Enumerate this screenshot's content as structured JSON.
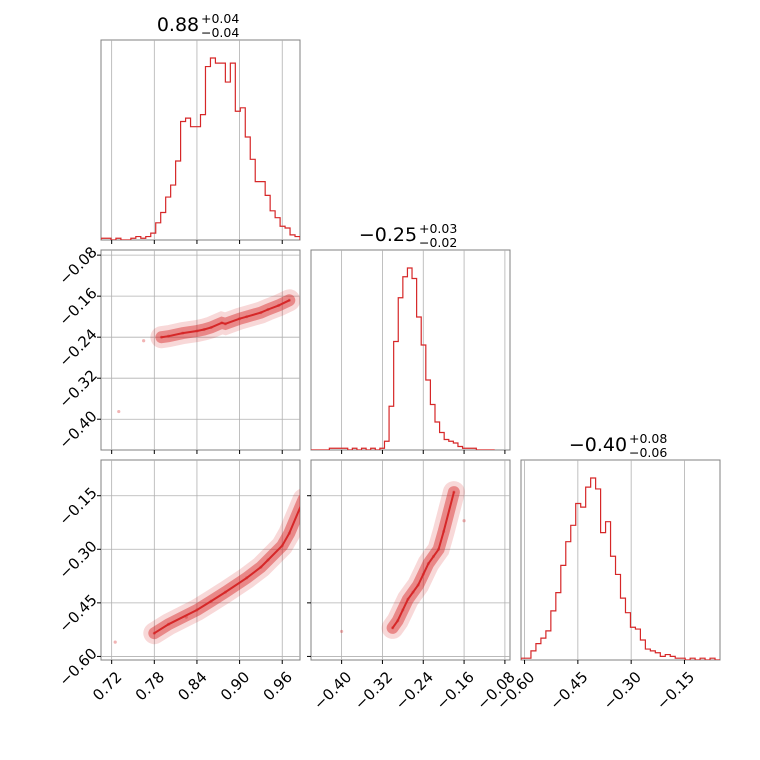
{
  "colors": {
    "series": "#d62728",
    "grid": "#b0b0b0",
    "frame": "#808080"
  },
  "chart_data": {
    "type": "corner",
    "parameters": [
      {
        "name": "",
        "median": "0.88",
        "plus": "+0.04",
        "minus": "−0.04",
        "range": [
          0.705,
          0.985
        ],
        "ticks": [
          0.72,
          0.78,
          0.84,
          0.9,
          0.96
        ],
        "tick_labels": [
          "0.72",
          "0.78",
          "0.84",
          "0.90",
          "0.96"
        ],
        "hist": {
          "bins": [
            0.705,
            0.712,
            0.719,
            0.726,
            0.733,
            0.74,
            0.747,
            0.754,
            0.761,
            0.768,
            0.775,
            0.782,
            0.789,
            0.796,
            0.803,
            0.81,
            0.817,
            0.824,
            0.831,
            0.838,
            0.845,
            0.852,
            0.859,
            0.866,
            0.873,
            0.88,
            0.887,
            0.894,
            0.901,
            0.908,
            0.915,
            0.922,
            0.929,
            0.936,
            0.943,
            0.95,
            0.957,
            0.964,
            0.971,
            0.978,
            0.985
          ],
          "counts": [
            1,
            1,
            0,
            1,
            0,
            0,
            1,
            2,
            1,
            2,
            4,
            10,
            16,
            25,
            32,
            46,
            69,
            71,
            66,
            66,
            73,
            101,
            106,
            103,
            103,
            92,
            103,
            75,
            77,
            60,
            47,
            34,
            34,
            26,
            17,
            13,
            8,
            7,
            3,
            2
          ]
        }
      },
      {
        "name": "",
        "median": "−0.25",
        "plus": "+0.03",
        "minus": "−0.02",
        "range": [
          -0.46,
          -0.07
        ],
        "ticks": [
          -0.4,
          -0.32,
          -0.24,
          -0.16,
          -0.08
        ],
        "tick_labels": [
          "−0.40",
          "−0.32",
          "−0.24",
          "−0.16",
          "−0.08"
        ],
        "hist": {
          "bins": [
            -0.46,
            -0.451,
            -0.442,
            -0.433,
            -0.424,
            -0.415,
            -0.406,
            -0.397,
            -0.388,
            -0.379,
            -0.37,
            -0.361,
            -0.352,
            -0.343,
            -0.334,
            -0.325,
            -0.316,
            -0.307,
            -0.298,
            -0.289,
            -0.28,
            -0.271,
            -0.262,
            -0.253,
            -0.244,
            -0.235,
            -0.226,
            -0.217,
            -0.208,
            -0.199,
            -0.19,
            -0.181,
            -0.172,
            -0.163,
            -0.154,
            -0.145,
            -0.136,
            -0.127,
            -0.118,
            -0.109,
            -0.1
          ],
          "counts": [
            0,
            0,
            0,
            0,
            1,
            1,
            1,
            1,
            0,
            1,
            0,
            1,
            0,
            1,
            0,
            1,
            5,
            25,
            62,
            87,
            99,
            104,
            98,
            76,
            60,
            40,
            26,
            16,
            10,
            6,
            5,
            4,
            2,
            1,
            1,
            1,
            0,
            0,
            0,
            0
          ]
        }
      },
      {
        "name": "",
        "median": "−0.40",
        "plus": "+0.08",
        "minus": "−0.06",
        "range": [
          -0.61,
          -0.05
        ],
        "ticks": [
          -0.6,
          -0.45,
          -0.3,
          -0.15
        ],
        "tick_labels": [
          "−0.60",
          "−0.45",
          "−0.30",
          "−0.15"
        ],
        "hist": {
          "bins": [
            -0.61,
            -0.596,
            -0.582,
            -0.568,
            -0.554,
            -0.54,
            -0.526,
            -0.512,
            -0.498,
            -0.484,
            -0.47,
            -0.456,
            -0.442,
            -0.428,
            -0.414,
            -0.4,
            -0.386,
            -0.372,
            -0.358,
            -0.344,
            -0.33,
            -0.316,
            -0.302,
            -0.288,
            -0.274,
            -0.26,
            -0.246,
            -0.232,
            -0.218,
            -0.204,
            -0.19,
            -0.176,
            -0.162,
            -0.148,
            -0.134,
            -0.12,
            -0.106,
            -0.092,
            -0.078,
            -0.064,
            -0.05
          ],
          "counts": [
            1,
            1,
            5,
            9,
            12,
            16,
            27,
            37,
            52,
            65,
            74,
            86,
            84,
            95,
            100,
            94,
            70,
            76,
            57,
            47,
            34,
            26,
            18,
            17,
            11,
            6,
            5,
            4,
            2,
            3,
            2,
            1,
            1,
            0,
            1,
            0,
            1,
            0,
            1,
            0
          ]
        }
      }
    ],
    "pairs": [
      {
        "x_param": 0,
        "y_param": 1,
        "correlation": "positive",
        "points": [
          [
            0.82,
            -0.232
          ],
          [
            0.85,
            -0.225
          ],
          [
            0.88,
            -0.214
          ],
          [
            0.91,
            -0.2
          ],
          [
            0.94,
            -0.186
          ],
          [
            0.97,
            -0.168
          ],
          [
            0.79,
            -0.24
          ],
          [
            0.86,
            -0.221
          ],
          [
            0.9,
            -0.204
          ],
          [
            0.93,
            -0.192
          ],
          [
            0.84,
            -0.228
          ],
          [
            0.875,
            -0.212
          ],
          [
            0.8,
            -0.238
          ],
          [
            0.955,
            -0.178
          ],
          [
            0.765,
            -0.247
          ],
          [
            0.73,
            -0.385
          ]
        ]
      },
      {
        "x_param": 0,
        "y_param": 2,
        "correlation": "strong positive, curved",
        "points": [
          [
            0.8,
            -0.51
          ],
          [
            0.84,
            -0.47
          ],
          [
            0.88,
            -0.42
          ],
          [
            0.91,
            -0.38
          ],
          [
            0.94,
            -0.33
          ],
          [
            0.97,
            -0.255
          ],
          [
            0.99,
            -0.16
          ],
          [
            0.78,
            -0.535
          ],
          [
            0.86,
            -0.445
          ],
          [
            0.93,
            -0.35
          ],
          [
            0.96,
            -0.29
          ],
          [
            0.825,
            -0.49
          ],
          [
            0.725,
            -0.56
          ]
        ]
      },
      {
        "x_param": 1,
        "y_param": 2,
        "correlation": "positive",
        "points": [
          [
            -0.28,
            -0.47
          ],
          [
            -0.27,
            -0.44
          ],
          [
            -0.26,
            -0.42
          ],
          [
            -0.25,
            -0.4
          ],
          [
            -0.24,
            -0.37
          ],
          [
            -0.23,
            -0.34
          ],
          [
            -0.22,
            -0.32
          ],
          [
            -0.21,
            -0.3
          ],
          [
            -0.29,
            -0.5
          ],
          [
            -0.3,
            -0.52
          ],
          [
            -0.2,
            -0.25
          ],
          [
            -0.18,
            -0.14
          ],
          [
            -0.16,
            -0.22
          ],
          [
            -0.4,
            -0.53
          ]
        ]
      }
    ]
  }
}
